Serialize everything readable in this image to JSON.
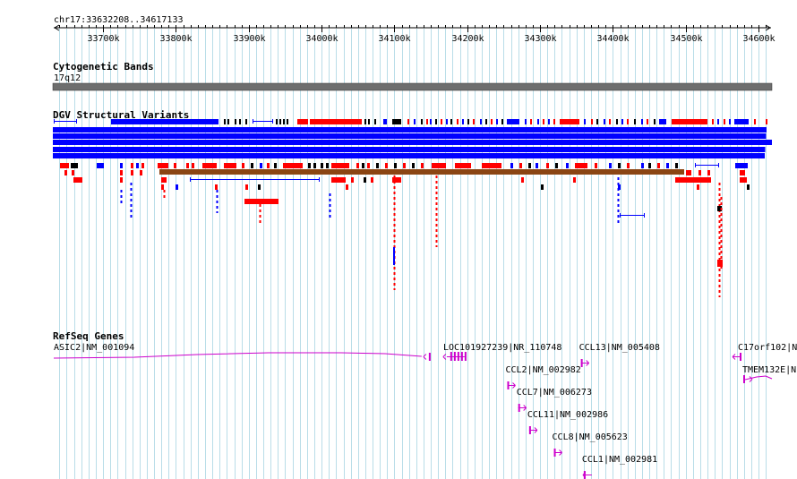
{
  "ruler": {
    "location": "chr17:33632208..34617133",
    "start": 33632208,
    "end": 34617133,
    "major_ticks": [
      33700000,
      33800000,
      33900000,
      34000000,
      34100000,
      34200000,
      34300000,
      34400000,
      34500000,
      34600000
    ],
    "major_labels": [
      "33700k",
      "33800k",
      "33900k",
      "34000k",
      "34100k",
      "34200k",
      "34300k",
      "34400k",
      "34500k",
      "34600k"
    ],
    "minor_step": 10000
  },
  "tracks": {
    "cytoband": {
      "title": "Cytogenetic Bands",
      "band": "17q12",
      "color": "#666666"
    },
    "dgv": {
      "title": "DGV Structural Variants",
      "colors": {
        "loss": "#ff0000",
        "gain": "#0000ff",
        "both": "#000000",
        "inversion": "#8b4513"
      }
    },
    "refseq": {
      "title": "RefSeq Genes",
      "color": "#cc00cc"
    }
  },
  "genes": [
    {
      "id": "asic2",
      "label": "ASIC2|NM_001094",
      "start": 33632208,
      "end": 34162000,
      "strand": "-"
    },
    {
      "id": "loc101927239",
      "label": "LOC101927239|NR_110748",
      "start": 34162000,
      "end": 34186000,
      "strand": "-"
    },
    {
      "id": "ccl2",
      "label": "CCL2|NM_002982",
      "start": 34255000,
      "end": 34257000,
      "strand": "+"
    },
    {
      "id": "ccl7",
      "label": "CCL7|NM_006273",
      "start": 34270000,
      "end": 34272000,
      "strand": "+"
    },
    {
      "id": "ccl11",
      "label": "CCL11|NM_002986",
      "start": 34285000,
      "end": 34287500,
      "strand": "+"
    },
    {
      "id": "ccl8",
      "label": "CCL8|NM_005623",
      "start": 34319000,
      "end": 34321000,
      "strand": "+"
    },
    {
      "id": "ccl13",
      "label": "CCL13|NM_005408",
      "start": 34356000,
      "end": 34358000,
      "strand": "+"
    },
    {
      "id": "ccl1",
      "label": "CCL1|NM_002981",
      "start": 34360000,
      "end": 34363000,
      "strand": "-"
    },
    {
      "id": "c17orf102",
      "label": "C17orf102|N",
      "start": 34580000,
      "end": 34589000,
      "strand": "-"
    },
    {
      "id": "tmem132e",
      "label": "TMEM132E|N",
      "start": 34584000,
      "end": 34617133,
      "strand": "+"
    }
  ]
}
